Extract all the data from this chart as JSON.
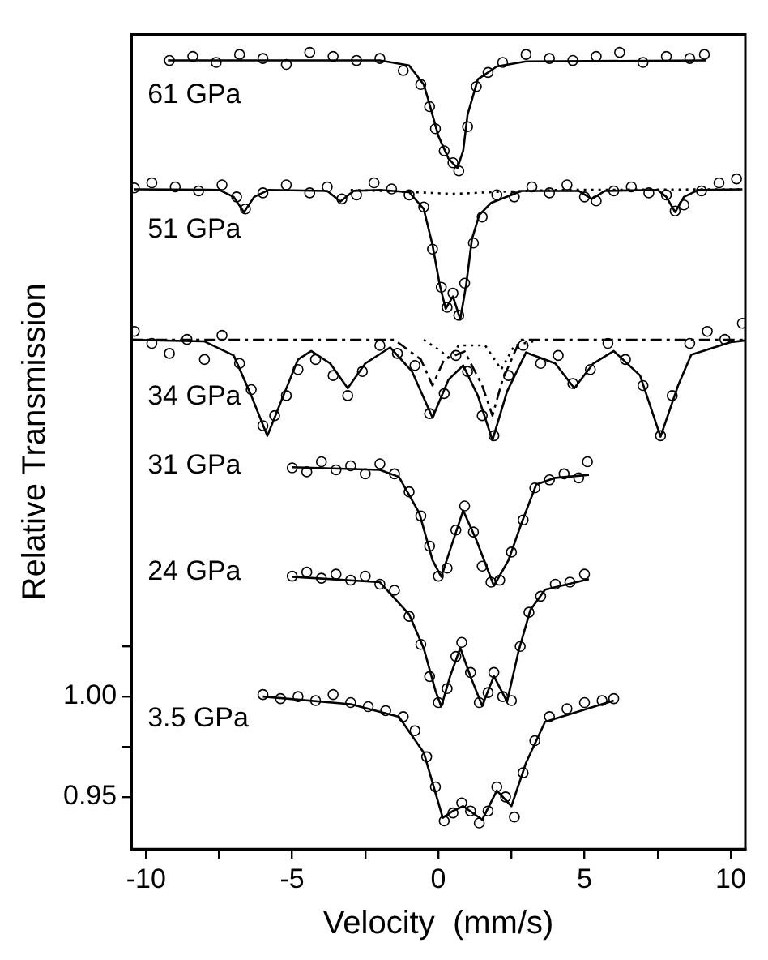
{
  "chart_data": {
    "type": "line",
    "xlabel": "Velocity  (mm/s)",
    "ylabel": "Relative Transmission",
    "xlim": [
      -10.5,
      10.5
    ],
    "ylim": [
      0.924,
      1.33
    ],
    "xticks": [
      -10,
      {
        "value": -7.5,
        "label": null
      },
      -5,
      {
        "value": -2.5,
        "label": null
      },
      0,
      {
        "value": 2.5,
        "label": null
      },
      5,
      {
        "value": 7.5,
        "label": null
      },
      10
    ],
    "yticks": [
      {
        "value": 0.95,
        "label": "0.95"
      },
      {
        "value": 0.975,
        "label": null
      },
      {
        "value": 1,
        "label": "1.00"
      },
      {
        "value": 1.025,
        "label": null
      }
    ],
    "annotations": [
      "61 GPa",
      "51 GPa",
      "34 GPa",
      "31 GPa",
      "24 GPa",
      "3.5 GPa"
    ],
    "series": [
      {
        "type": "scatter",
        "color": "#000000",
        "marker": "circle",
        "x": [
          -9.2,
          -8.4,
          -7.6,
          -6.8,
          -6.0,
          -5.2,
          -4.4,
          -3.6,
          -2.8,
          -2.0,
          -1.2,
          -0.6,
          -0.3,
          -0.1,
          0.2,
          0.5,
          0.7,
          1.0,
          1.3,
          1.7,
          2.2,
          3.0,
          3.8,
          4.6,
          5.4,
          6.2,
          7.0,
          7.8,
          8.6,
          9.1
        ],
        "values": [
          1.317,
          1.319,
          1.316,
          1.32,
          1.318,
          1.315,
          1.321,
          1.319,
          1.317,
          1.318,
          1.312,
          1.305,
          1.294,
          1.283,
          1.272,
          1.266,
          1.262,
          1.284,
          1.304,
          1.311,
          1.316,
          1.32,
          1.318,
          1.317,
          1.319,
          1.321,
          1.316,
          1.319,
          1.318,
          1.32
        ]
      },
      {
        "type": "line",
        "color": "#000000",
        "marker": "none",
        "line_style": "solid",
        "x": [
          -9.25,
          -2.0,
          -1.0,
          -0.5,
          -0.35,
          0,
          0.35,
          0.65,
          0.85,
          1.0,
          1.35,
          2.0,
          3.0,
          9.15
        ],
        "values": [
          1.317,
          1.317,
          1.3145,
          1.305,
          1.2977,
          1.2794,
          1.268,
          1.2634,
          1.272,
          1.29,
          1.3076,
          1.314,
          1.3165,
          1.317
        ]
      },
      {
        "type": "scatter",
        "color": "#000000",
        "marker": "circle",
        "x": [
          -10.4,
          -9.8,
          -9.0,
          -8.2,
          -7.4,
          -6.9,
          -6.6,
          -6.0,
          -5.2,
          -4.4,
          -3.8,
          -3.3,
          -2.8,
          -2.2,
          -1.6,
          -1.0,
          -0.5,
          -0.2,
          0.1,
          0.3,
          0.5,
          0.7,
          0.9,
          1.2,
          1.5,
          2.0,
          2.6,
          3.2,
          3.8,
          4.4,
          5.0,
          5.4,
          6.0,
          6.6,
          7.2,
          7.8,
          8.1,
          8.4,
          9.0,
          9.6,
          10.2
        ],
        "values": [
          1.2535,
          1.256,
          1.254,
          1.252,
          1.255,
          1.249,
          1.243,
          1.251,
          1.255,
          1.251,
          1.254,
          1.248,
          1.25,
          1.256,
          1.253,
          1.25,
          1.244,
          1.223,
          1.204,
          1.194,
          1.201,
          1.19,
          1.206,
          1.226,
          1.239,
          1.25,
          1.249,
          1.254,
          1.251,
          1.255,
          1.249,
          1.247,
          1.252,
          1.254,
          1.251,
          1.25,
          1.242,
          1.245,
          1.252,
          1.256,
          1.258
        ]
      },
      {
        "type": "line",
        "color": "#000000",
        "marker": "none",
        "line_style": "solid",
        "x": [
          -10.4,
          -7.5,
          -7.0,
          -6.65,
          -6.3,
          -5.8,
          -3.8,
          -3.35,
          -2.9,
          -2.0,
          -1.0,
          -0.5,
          -0.2,
          0.05,
          0.25,
          0.5,
          0.75,
          0.95,
          1.15,
          1.4,
          1.8,
          2.85,
          4.8,
          5.25,
          5.7,
          7.5,
          7.8,
          8.1,
          8.4,
          8.9,
          10.4
        ],
        "values": [
          1.2528,
          1.2525,
          1.249,
          1.2414,
          1.249,
          1.2525,
          1.252,
          1.2467,
          1.252,
          1.2525,
          1.2514,
          1.243,
          1.225,
          1.205,
          1.1933,
          1.1994,
          1.188,
          1.205,
          1.228,
          1.24,
          1.246,
          1.252,
          1.252,
          1.248,
          1.252,
          1.2525,
          1.249,
          1.2414,
          1.249,
          1.2525,
          1.2528
        ]
      },
      {
        "type": "line",
        "color": "#000000",
        "marker": "none",
        "line_style": "dotted",
        "x": [
          -3.0,
          -1.0,
          0.5,
          2.0,
          4.0,
          10.4
        ],
        "values": [
          1.2525,
          1.2515,
          1.2505,
          1.2515,
          1.2525,
          1.2528
        ]
      },
      {
        "type": "scatter",
        "color": "#000000",
        "marker": "circle",
        "x": [
          -10.4,
          -9.8,
          -9.2,
          -8.6,
          -8.0,
          -7.4,
          -6.8,
          -6.4,
          -6.0,
          -5.6,
          -5.2,
          -4.8,
          -4.2,
          -3.6,
          -3.1,
          -2.6,
          -2.0,
          -1.4,
          -0.8,
          -0.3,
          0.2,
          0.6,
          1.0,
          1.5,
          1.9,
          2.4,
          2.9,
          3.5,
          4.1,
          4.6,
          5.2,
          5.8,
          6.4,
          7.0,
          7.6,
          8.0,
          8.6,
          9.2,
          9.8,
          10.4
        ],
        "values": [
          1.182,
          1.176,
          1.171,
          1.178,
          1.168,
          1.18,
          1.166,
          1.153,
          1.135,
          1.14,
          1.15,
          1.163,
          1.168,
          1.16,
          1.15,
          1.162,
          1.175,
          1.171,
          1.165,
          1.141,
          1.151,
          1.17,
          1.162,
          1.14,
          1.13,
          1.16,
          1.175,
          1.166,
          1.17,
          1.156,
          1.163,
          1.176,
          1.168,
          1.155,
          1.13,
          1.15,
          1.176,
          1.182,
          1.178,
          1.186
        ]
      },
      {
        "type": "line",
        "color": "#000000",
        "marker": "none",
        "line_style": "solid",
        "x": [
          -10.5,
          -8.0,
          -7.0,
          -6.4,
          -5.85,
          -5.3,
          -4.8,
          -4.35,
          -3.7,
          -3.1,
          -2.5,
          -1.65,
          -0.9,
          -0.2,
          0.35,
          0.85,
          1.35,
          1.85,
          2.35,
          3.0,
          4.0,
          4.65,
          5.3,
          6.0,
          6.9,
          7.6,
          8.2,
          8.65,
          10.0,
          10.5
        ],
        "values": [
          1.1778,
          1.177,
          1.17,
          1.15,
          1.1299,
          1.15,
          1.168,
          1.1722,
          1.166,
          1.1537,
          1.166,
          1.174,
          1.162,
          1.139,
          1.158,
          1.165,
          1.15,
          1.1278,
          1.152,
          1.1715,
          1.166,
          1.1537,
          1.166,
          1.1722,
          1.16,
          1.1295,
          1.155,
          1.1704,
          1.1766,
          1.1775
        ]
      },
      {
        "type": "line",
        "color": "#000000",
        "marker": "none",
        "line_style": "dashed",
        "x": [
          -10.5,
          -1.5,
          -0.6,
          -0.2,
          0.2,
          0.9,
          1.5,
          1.85,
          2.2,
          2.8,
          10.5
        ],
        "values": [
          1.1778,
          1.1778,
          1.168,
          1.155,
          1.168,
          1.172,
          1.155,
          1.14,
          1.158,
          1.1778,
          1.1778
        ]
      },
      {
        "type": "line",
        "color": "#000000",
        "marker": "none",
        "line_style": "dotted",
        "x": [
          -0.5,
          0.0,
          0.35,
          0.7,
          1.6,
          2.15,
          2.6,
          3.5
        ],
        "values": [
          1.1778,
          1.173,
          1.169,
          1.175,
          1.175,
          1.163,
          1.175,
          1.1778
        ]
      },
      {
        "type": "scatter",
        "color": "#000000",
        "marker": "circle",
        "x": [
          -5.0,
          -4.5,
          -4.0,
          -3.5,
          -3.0,
          -2.5,
          -2.0,
          -1.5,
          -1.0,
          -0.6,
          -0.3,
          0.0,
          0.3,
          0.6,
          0.9,
          1.2,
          1.5,
          1.8,
          2.1,
          2.5,
          2.9,
          3.3,
          3.8,
          4.3,
          4.8,
          5.1
        ],
        "values": [
          1.114,
          1.112,
          1.117,
          1.113,
          1.115,
          1.111,
          1.116,
          1.111,
          1.102,
          1.09,
          1.075,
          1.06,
          1.064,
          1.083,
          1.095,
          1.082,
          1.065,
          1.057,
          1.058,
          1.072,
          1.088,
          1.104,
          1.108,
          1.111,
          1.109,
          1.117
        ]
      },
      {
        "type": "line",
        "color": "#000000",
        "marker": "none",
        "line_style": "solid",
        "x": [
          -5.0,
          -2.0,
          -1.35,
          -0.65,
          -0.2,
          0.1,
          0.4,
          0.85,
          1.3,
          1.9,
          2.4,
          2.85,
          3.35,
          4.0,
          5.15
        ],
        "values": [
          1.1143,
          1.113,
          1.1095,
          1.0914,
          1.068,
          1.0597,
          1.073,
          1.0927,
          1.078,
          1.0552,
          1.068,
          1.0866,
          1.1057,
          1.109,
          1.1105
        ]
      },
      {
        "type": "scatter",
        "color": "#000000",
        "marker": "circle",
        "x": [
          -5.0,
          -4.5,
          -4.0,
          -3.5,
          -3.0,
          -2.5,
          -2.0,
          -1.5,
          -1.0,
          -0.6,
          -0.3,
          0.0,
          0.3,
          0.6,
          0.8,
          1.1,
          1.4,
          1.7,
          1.9,
          2.2,
          2.5,
          2.8,
          3.1,
          3.5,
          4.0,
          4.5,
          5.0
        ],
        "values": [
          1.06,
          1.062,
          1.059,
          1.061,
          1.058,
          1.06,
          1.056,
          1.053,
          1.04,
          1.026,
          1.01,
          0.997,
          1.004,
          1.02,
          1.027,
          1.012,
          0.997,
          1.002,
          1.012,
          1.0,
          0.998,
          1.025,
          1.042,
          1.05,
          1.056,
          1.057,
          1.061
        ]
      },
      {
        "type": "line",
        "color": "#000000",
        "marker": "none",
        "line_style": "solid",
        "x": [
          -5.0,
          -2.0,
          -1.0,
          -0.5,
          -0.1,
          0.1,
          0.4,
          0.75,
          1.1,
          1.5,
          1.9,
          2.35,
          2.75,
          3.15,
          3.65,
          5.15
        ],
        "values": [
          1.0597,
          1.057,
          1.041,
          1.024,
          1.003,
          0.995,
          1.01,
          1.0242,
          1.01,
          0.9954,
          1.0102,
          0.9975,
          1.023,
          1.0432,
          1.0533,
          1.0585
        ]
      },
      {
        "type": "scatter",
        "color": "#000000",
        "marker": "circle",
        "x": [
          -6.0,
          -5.4,
          -4.8,
          -4.2,
          -3.6,
          -3.0,
          -2.4,
          -1.8,
          -1.2,
          -0.8,
          -0.4,
          -0.1,
          0.2,
          0.5,
          0.8,
          1.1,
          1.4,
          1.7,
          2.0,
          2.3,
          2.6,
          2.9,
          3.3,
          3.8,
          4.4,
          5.0,
          5.6,
          6.0
        ],
        "values": [
          1.001,
          0.999,
          1.0,
          0.998,
          1.001,
          0.997,
          0.995,
          0.993,
          0.99,
          0.983,
          0.97,
          0.955,
          0.938,
          0.942,
          0.947,
          0.943,
          0.937,
          0.943,
          0.955,
          0.95,
          0.94,
          0.962,
          0.978,
          0.99,
          0.994,
          0.997,
          0.998,
          0.999
        ]
      },
      {
        "type": "line",
        "color": "#000000",
        "marker": "none",
        "line_style": "solid",
        "x": [
          -6.0,
          -3.0,
          -1.35,
          -0.5,
          0.15,
          0.5,
          0.85,
          1.5,
          2.0,
          2.5,
          3.0,
          3.65,
          6.0
        ],
        "values": [
          1.0,
          0.9962,
          0.9899,
          0.9721,
          0.9396,
          0.943,
          0.9454,
          0.9386,
          0.9531,
          0.9454,
          0.967,
          0.9874,
          0.998
        ]
      }
    ]
  }
}
